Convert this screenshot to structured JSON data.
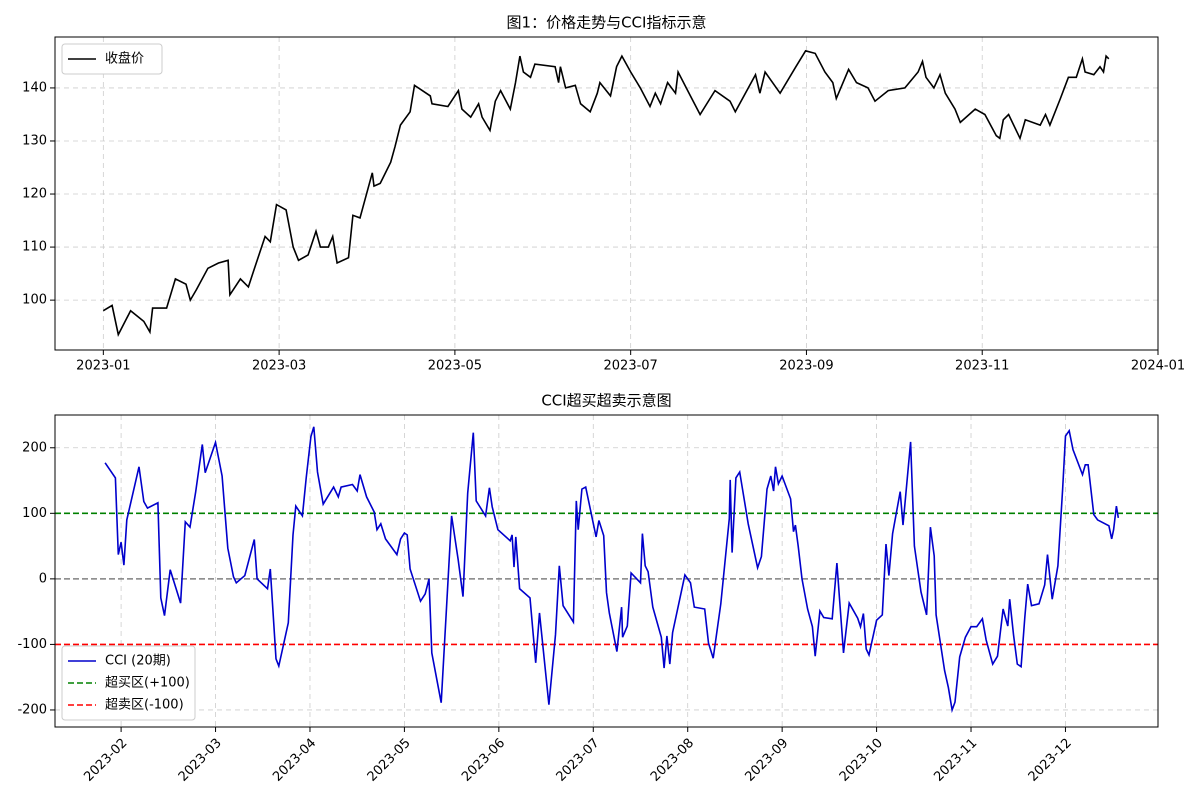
{
  "chart_data": [
    {
      "type": "line",
      "title": "图1：价格走势与CCI指标示意",
      "legend": "upper left",
      "grid": true,
      "xlim": [
        -0.55,
        12.0
      ],
      "xticks": [
        {
          "value": 0,
          "label": "2023-01"
        },
        {
          "value": 2,
          "label": "2023-03"
        },
        {
          "value": 4,
          "label": "2023-05"
        },
        {
          "value": 6,
          "label": "2023-07"
        },
        {
          "value": 8,
          "label": "2023-09"
        },
        {
          "value": 10,
          "label": "2023-11"
        },
        {
          "value": 12,
          "label": "2024-01"
        }
      ],
      "ylim": [
        90.6,
        149.6
      ],
      "yticks": [
        100,
        110,
        120,
        130,
        140
      ],
      "x": [
        0.0,
        0.1,
        0.17,
        0.31,
        0.46,
        0.53,
        0.56,
        0.72,
        0.82,
        0.94,
        0.99,
        1.06,
        1.19,
        1.31,
        1.42,
        1.44,
        1.56,
        1.65,
        1.71,
        1.84,
        1.9,
        1.97,
        2.08,
        2.16,
        2.22,
        2.33,
        2.42,
        2.47,
        2.56,
        2.61,
        2.66,
        2.79,
        2.84,
        2.92,
        3.06,
        3.08,
        3.15,
        3.27,
        3.32,
        3.38,
        3.49,
        3.54,
        3.72,
        3.74,
        3.92,
        4.04,
        4.08,
        4.18,
        4.27,
        4.31,
        4.4,
        4.46,
        4.52,
        4.63,
        4.69,
        4.74,
        4.78,
        4.86,
        4.91,
        5.14,
        5.18,
        5.2,
        5.26,
        5.37,
        5.43,
        5.54,
        5.62,
        5.65,
        5.77,
        5.84,
        5.9,
        6.0,
        6.11,
        6.22,
        6.28,
        6.34,
        6.42,
        6.51,
        6.54,
        6.68,
        6.79,
        6.96,
        7.13,
        7.19,
        7.42,
        7.47,
        7.53,
        7.7,
        7.88,
        7.99,
        8.1,
        8.21,
        8.3,
        8.34,
        8.48,
        8.57,
        8.7,
        8.78,
        8.93,
        9.12,
        9.27,
        9.32,
        9.36,
        9.45,
        9.52,
        9.58,
        9.69,
        9.75,
        9.92,
        10.03,
        10.16,
        10.2,
        10.24,
        10.3,
        10.43,
        10.49,
        10.66,
        10.72,
        10.77,
        10.89,
        10.98,
        11.07,
        11.14,
        11.17,
        11.27,
        11.34,
        11.38,
        11.41,
        11.44
      ],
      "series": [
        {
          "name": "收盘价",
          "color": "#000000",
          "values": [
            98,
            99,
            93.5,
            98,
            96,
            94,
            98.5,
            98.5,
            104,
            103,
            100,
            102,
            106,
            107,
            107.5,
            101,
            104,
            102.5,
            105.5,
            112,
            111,
            118,
            117,
            110,
            107.5,
            108.5,
            113,
            110,
            110,
            112,
            107,
            108,
            116,
            115.5,
            124,
            121.5,
            122,
            126,
            129,
            133,
            135.5,
            140.5,
            138.5,
            137,
            136.5,
            139.5,
            136,
            134.5,
            137,
            134.5,
            132,
            137.5,
            139.5,
            136,
            141,
            146,
            143,
            142,
            144.5,
            144,
            141,
            144,
            140,
            140.5,
            137,
            135.5,
            139,
            141,
            138.5,
            144,
            146,
            143,
            140,
            136.5,
            139,
            137,
            141,
            139,
            143,
            138.5,
            135,
            139.5,
            137.5,
            135.5,
            142.5,
            139,
            143,
            139,
            144,
            147,
            146.5,
            143,
            141,
            138,
            143.5,
            141,
            140,
            137.5,
            139.5,
            140,
            143,
            145,
            142,
            140,
            142.5,
            139,
            136,
            133.5,
            136,
            135,
            131,
            130.5,
            134,
            135,
            130.5,
            134,
            133,
            135,
            133,
            138,
            142,
            142,
            145.5,
            143,
            142.5,
            144,
            143,
            146,
            145.5
          ]
        }
      ]
    },
    {
      "type": "line",
      "title": "CCI超买超卖示意图",
      "legend": "lower left",
      "grid": true,
      "xlim": [
        0.3,
        11.98
      ],
      "xticks": [
        {
          "value": 1,
          "label": "2023-02"
        },
        {
          "value": 2,
          "label": "2023-03"
        },
        {
          "value": 3,
          "label": "2023-04"
        },
        {
          "value": 4,
          "label": "2023-05"
        },
        {
          "value": 5,
          "label": "2023-06"
        },
        {
          "value": 6,
          "label": "2023-07"
        },
        {
          "value": 7,
          "label": "2023-08"
        },
        {
          "value": 8,
          "label": "2023-09"
        },
        {
          "value": 9,
          "label": "2023-10"
        },
        {
          "value": 10,
          "label": "2023-11"
        },
        {
          "value": 11,
          "label": "2023-12"
        }
      ],
      "ylim": [
        -226,
        250
      ],
      "yticks": [
        -200,
        -100,
        0,
        100,
        200
      ],
      "x": [
        0.83,
        0.94,
        0.97,
        1.0,
        1.03,
        1.06,
        1.19,
        1.24,
        1.28,
        1.39,
        1.42,
        1.46,
        1.52,
        1.63,
        1.68,
        1.73,
        1.79,
        1.86,
        1.89,
        2.0,
        2.07,
        2.13,
        2.19,
        2.22,
        2.31,
        2.41,
        2.44,
        2.55,
        2.58,
        2.64,
        2.67,
        2.77,
        2.82,
        2.85,
        2.92,
        2.96,
        3.01,
        3.04,
        3.08,
        3.14,
        3.25,
        3.3,
        3.33,
        3.45,
        3.5,
        3.53,
        3.6,
        3.68,
        3.71,
        3.75,
        3.8,
        3.92,
        3.96,
        4.0,
        4.03,
        4.06,
        4.17,
        4.22,
        4.26,
        4.29,
        4.34,
        4.39,
        4.44,
        4.5,
        4.57,
        4.62,
        4.67,
        4.73,
        4.76,
        4.86,
        4.9,
        4.93,
        4.99,
        5.12,
        5.14,
        5.16,
        5.18,
        5.22,
        5.33,
        5.39,
        5.43,
        5.53,
        5.6,
        5.64,
        5.68,
        5.79,
        5.82,
        5.84,
        5.88,
        5.92,
        6.03,
        6.06,
        6.11,
        6.14,
        6.17,
        6.25,
        6.3,
        6.31,
        6.36,
        6.4,
        6.5,
        6.52,
        6.55,
        6.58,
        6.63,
        6.72,
        6.75,
        6.78,
        6.81,
        6.84,
        6.97,
        7.03,
        7.07,
        7.18,
        7.22,
        7.27,
        7.35,
        7.44,
        7.45,
        7.47,
        7.51,
        7.55,
        7.64,
        7.74,
        7.78,
        7.84,
        7.88,
        7.91,
        7.93,
        7.96,
        8.0,
        8.09,
        8.12,
        8.14,
        8.17,
        8.21,
        8.27,
        8.32,
        8.35,
        8.4,
        8.44,
        8.53,
        8.58,
        8.65,
        8.71,
        8.8,
        8.83,
        8.86,
        8.89,
        8.92,
        9.0,
        9.06,
        9.1,
        9.13,
        9.17,
        9.25,
        9.28,
        9.36,
        9.4,
        9.47,
        9.53,
        9.57,
        9.61,
        9.63,
        9.72,
        9.76,
        9.8,
        9.83,
        9.88,
        9.94,
        10.0,
        10.06,
        10.12,
        10.16,
        10.23,
        10.28,
        10.34,
        10.39,
        10.41,
        10.45,
        10.49,
        10.53,
        10.57,
        10.6,
        10.64,
        10.72,
        10.78,
        10.81,
        10.86,
        10.92,
        10.97,
        11.0,
        11.04,
        11.08,
        11.18,
        11.21,
        11.24,
        11.3,
        11.34,
        11.46,
        11.49,
        11.51,
        11.54,
        11.56
      ],
      "series": [
        {
          "name": "CCI (20期)",
          "color": "#0000cc",
          "values": [
            177,
            154,
            37,
            56,
            21,
            90,
            171,
            118,
            108,
            116,
            -29,
            -56,
            14,
            -37,
            87,
            79,
            133,
            205,
            162,
            208,
            157,
            47,
            3,
            -6,
            5,
            60,
            0,
            -15,
            15,
            -122,
            -133,
            -67,
            67,
            111,
            96,
            154,
            217,
            232,
            163,
            114,
            140,
            125,
            140,
            144,
            134,
            159,
            125,
            102,
            75,
            84,
            61,
            37,
            61,
            70,
            67,
            15,
            -34,
            -23,
            0,
            -113,
            -151,
            -189,
            -58,
            96,
            29,
            -27,
            131,
            223,
            119,
            96,
            139,
            110,
            75,
            58,
            67,
            18,
            64,
            -15,
            -29,
            -128,
            -52,
            -192,
            -85,
            20,
            -41,
            -66,
            119,
            75,
            137,
            140,
            64,
            89,
            66,
            -21,
            -52,
            -111,
            -43,
            -89,
            -72,
            9,
            -6,
            69,
            20,
            11,
            -43,
            -89,
            -136,
            -87,
            -130,
            -82,
            6,
            -6,
            -43,
            -46,
            -98,
            -121,
            -38,
            92,
            151,
            40,
            154,
            163,
            84,
            17,
            34,
            137,
            157,
            134,
            171,
            145,
            157,
            122,
            72,
            82,
            50,
            0,
            -46,
            -73,
            -118,
            -49,
            -59,
            -61,
            24,
            -113,
            -37,
            -60,
            -73,
            -53,
            -107,
            -116,
            -63,
            -55,
            53,
            5,
            69,
            133,
            82,
            209,
            50,
            -20,
            -55,
            79,
            35,
            -55,
            -140,
            -166,
            -200,
            -188,
            -119,
            -89,
            -73,
            -73,
            -61,
            -93,
            -130,
            -118,
            -46,
            -72,
            -31,
            -85,
            -130,
            -134,
            -59,
            -8,
            -41,
            -38,
            -9,
            37,
            -31,
            20,
            136,
            218,
            226,
            197,
            159,
            174,
            174,
            98,
            90,
            81,
            61,
            75,
            111,
            93
          ]
        }
      ],
      "hlines": [
        {
          "name": "超买区(+100)",
          "color": "#008000",
          "value": 100
        },
        {
          "name": "",
          "color": "#808080",
          "value": 0
        },
        {
          "name": "超卖区(-100)",
          "color": "#ff0000",
          "value": -100
        }
      ]
    }
  ]
}
